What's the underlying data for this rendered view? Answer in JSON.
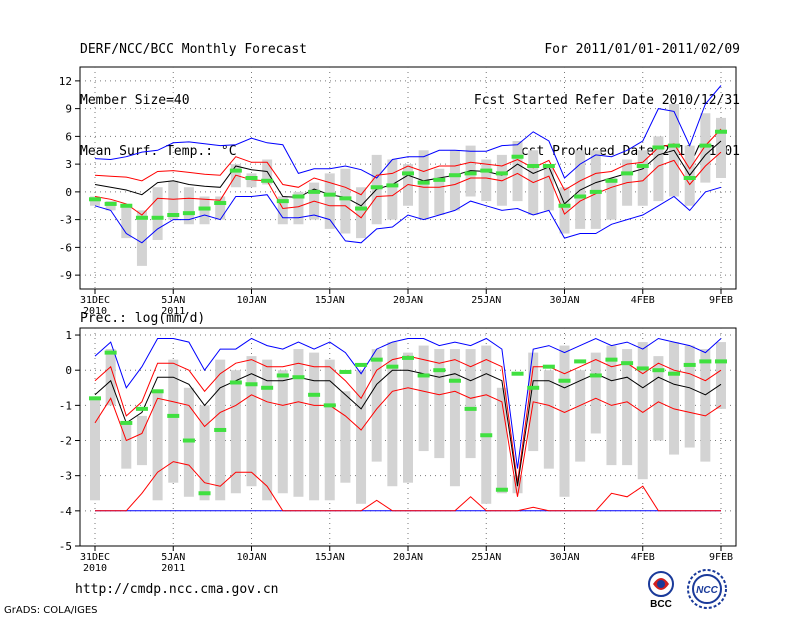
{
  "header": {
    "title": "DERF/NCC/BCC Monthly Forecast",
    "member_size": "Member Size=40",
    "variable_top": "Mean Surf. Temp.: °C",
    "for_range": "For 2011/01/01-2011/02/09",
    "started": "Fcst Started Refer Date 2010/12/31",
    "produced": "Fcst Produced Date 2011/01/01"
  },
  "footer": {
    "url": "http://cmdp.ncc.cma.gov.cn",
    "grads": "GrADS: COLA/IGES",
    "logo_bcc": "BCC",
    "logo_ncc": "NCC"
  },
  "colors": {
    "max": "#0000ff",
    "spread": "#ff0000",
    "mean": "#000000",
    "box": "#d3d3d3",
    "median": "#40e040"
  },
  "chart_data": [
    {
      "type": "box",
      "title": "Mean Surf. Temp.: °C",
      "days": 41,
      "x_ticks": [
        {
          "day": 0,
          "label": "31DEC",
          "sub": "2010"
        },
        {
          "day": 5,
          "label": "5JAN",
          "sub": "2011"
        },
        {
          "day": 10,
          "label": "10JAN",
          "sub": ""
        },
        {
          "day": 15,
          "label": "15JAN",
          "sub": ""
        },
        {
          "day": 20,
          "label": "20JAN",
          "sub": ""
        },
        {
          "day": 25,
          "label": "25JAN",
          "sub": ""
        },
        {
          "day": 30,
          "label": "30JAN",
          "sub": ""
        },
        {
          "day": 35,
          "label": "4FEB",
          "sub": ""
        },
        {
          "day": 40,
          "label": "9FEB",
          "sub": ""
        }
      ],
      "ylim": [
        -10.5,
        13.5
      ],
      "yticks": [
        -9,
        -6,
        -3,
        0,
        3,
        6,
        9,
        12
      ],
      "grid": true,
      "max": [
        3.6,
        3.5,
        3.8,
        4.3,
        4.5,
        5.3,
        5.4,
        5.2,
        5.0,
        5.1,
        5.8,
        5.3,
        5.1,
        2.0,
        2.5,
        2.5,
        2.8,
        2.4,
        1.5,
        3.5,
        3.8,
        3.8,
        4.5,
        4.5,
        4.4,
        4.4,
        5.0,
        5.1,
        6.5,
        5.5,
        1.5,
        3.0,
        4.0,
        3.8,
        4.5,
        5.5,
        9.0,
        8.7,
        5.0,
        9.5,
        11.5
      ],
      "upper": [
        1.8,
        1.7,
        1.6,
        1.2,
        2.2,
        2.3,
        2.1,
        1.9,
        1.8,
        3.8,
        3.2,
        3.2,
        0.8,
        0.5,
        1.5,
        1.0,
        0.5,
        -0.3,
        1.8,
        2.0,
        2.8,
        2.2,
        2.8,
        2.8,
        3.2,
        3.0,
        2.8,
        3.5,
        2.6,
        3.4,
        0.2,
        1.2,
        2.0,
        2.2,
        3.0,
        3.2,
        4.8,
        5.2,
        2.5,
        5.0,
        6.8
      ],
      "mean": [
        0.8,
        0.5,
        0.2,
        -0.3,
        1.0,
        1.2,
        0.8,
        0.6,
        0.5,
        2.8,
        2.4,
        2.2,
        -0.5,
        -0.6,
        0.3,
        -0.3,
        -0.6,
        -1.5,
        0.3,
        0.8,
        1.8,
        1.2,
        1.5,
        1.8,
        2.3,
        2.2,
        1.8,
        3.0,
        2.0,
        2.7,
        -1.3,
        0.2,
        1.0,
        1.5,
        2.0,
        2.5,
        4.0,
        4.5,
        1.8,
        4.0,
        5.5
      ],
      "lower": [
        -0.5,
        -0.8,
        -1.3,
        -2.5,
        -0.7,
        -0.8,
        -0.7,
        -0.8,
        -0.9,
        1.8,
        1.3,
        1.2,
        -1.8,
        -1.6,
        -1.0,
        -1.5,
        -1.5,
        -2.8,
        -0.5,
        -0.4,
        0.8,
        0.5,
        0.5,
        0.8,
        1.5,
        1.5,
        1.2,
        2.0,
        1.0,
        1.7,
        -2.4,
        -1.0,
        -0.2,
        0.5,
        1.0,
        1.2,
        2.8,
        3.4,
        0.8,
        2.8,
        4.3
      ],
      "min": [
        -1.5,
        -2.0,
        -4.5,
        -5.5,
        -4.0,
        -3.0,
        -3.0,
        -2.5,
        -3.0,
        -0.5,
        -0.5,
        -0.3,
        -2.8,
        -2.8,
        -2.5,
        -3.0,
        -5.3,
        -5.5,
        -4.0,
        -3.8,
        -2.5,
        -3.0,
        -2.5,
        -2.0,
        -1.0,
        -1.5,
        -2.0,
        -1.8,
        -2.5,
        -2.0,
        -5.0,
        -4.5,
        -4.5,
        -3.5,
        -3.0,
        -2.5,
        -1.5,
        -0.5,
        -2.0,
        0.0,
        0.5
      ],
      "box_top": [
        -0.5,
        -1.0,
        -1.3,
        -2.0,
        0.5,
        1.2,
        0.5,
        -0.5,
        -0.5,
        3.0,
        2.0,
        3.5,
        -0.5,
        0.0,
        1.0,
        2.0,
        2.5,
        0.5,
        4.0,
        3.5,
        3.0,
        4.5,
        2.5,
        4.5,
        5.0,
        3.5,
        4.0,
        5.5,
        4.5,
        3.0,
        0.5,
        4.5,
        4.5,
        1.5,
        3.5,
        4.5,
        6.0,
        9.5,
        5.0,
        8.5,
        8.0
      ],
      "box_bot": [
        -1.5,
        -2.0,
        -5.0,
        -8.0,
        -5.2,
        -3.0,
        -3.5,
        -3.5,
        -3.0,
        0.5,
        0.5,
        0.8,
        -3.5,
        -3.5,
        -3.0,
        -4.0,
        -4.5,
        -5.0,
        -3.5,
        -3.0,
        -1.5,
        -3.0,
        -2.5,
        -2.0,
        -0.5,
        -1.0,
        -1.5,
        -1.0,
        -2.5,
        -2.0,
        -4.5,
        -4.0,
        -4.0,
        -3.0,
        -1.5,
        -1.5,
        -1.0,
        -0.5,
        -1.5,
        1.0,
        1.5
      ],
      "median": [
        -0.8,
        -1.3,
        -1.5,
        -2.8,
        -2.8,
        -2.5,
        -2.3,
        -1.8,
        -1.2,
        2.3,
        1.5,
        1.2,
        -1.0,
        -0.5,
        0.0,
        -0.3,
        -0.7,
        -1.8,
        0.5,
        0.7,
        2.0,
        1.0,
        1.3,
        1.8,
        2.0,
        2.3,
        2.0,
        3.8,
        2.8,
        2.8,
        -1.5,
        -0.5,
        0.0,
        1.2,
        2.0,
        2.8,
        4.8,
        5.0,
        1.5,
        5.0,
        6.5
      ]
    },
    {
      "type": "box",
      "title": "Prec.: log(mm/d)",
      "days": 41,
      "x_ticks": [
        {
          "day": 0,
          "label": "31DEC",
          "sub": "2010"
        },
        {
          "day": 5,
          "label": "5JAN",
          "sub": "2011"
        },
        {
          "day": 10,
          "label": "10JAN",
          "sub": ""
        },
        {
          "day": 15,
          "label": "15JAN",
          "sub": ""
        },
        {
          "day": 20,
          "label": "20JAN",
          "sub": ""
        },
        {
          "day": 25,
          "label": "25JAN",
          "sub": ""
        },
        {
          "day": 30,
          "label": "30JAN",
          "sub": ""
        },
        {
          "day": 35,
          "label": "4FEB",
          "sub": ""
        },
        {
          "day": 40,
          "label": "9FEB",
          "sub": ""
        }
      ],
      "ylim": [
        -5,
        1.2
      ],
      "yticks": [
        -5,
        -4,
        -3,
        -2,
        -1,
        0,
        1
      ],
      "grid": true,
      "max": [
        0.4,
        0.8,
        -0.5,
        0.1,
        0.9,
        0.9,
        0.8,
        0.0,
        0.6,
        0.6,
        0.9,
        0.7,
        0.6,
        0.8,
        0.6,
        0.8,
        0.5,
        -0.1,
        0.6,
        0.8,
        0.9,
        0.9,
        0.7,
        0.8,
        0.7,
        0.9,
        0.6,
        -2.8,
        0.6,
        0.7,
        0.5,
        0.7,
        0.9,
        0.7,
        0.8,
        0.6,
        0.9,
        0.8,
        0.7,
        0.5,
        0.9
      ],
      "upper": [
        -0.3,
        0.1,
        -1.3,
        -0.9,
        0.2,
        0.2,
        0.0,
        -0.6,
        -0.1,
        0.2,
        0.3,
        0.1,
        0.1,
        0.2,
        0.1,
        0.1,
        -0.3,
        -0.8,
        0.0,
        0.3,
        0.4,
        0.3,
        0.2,
        0.3,
        0.1,
        0.3,
        0.1,
        -3.2,
        0.1,
        0.1,
        -0.1,
        0.1,
        0.3,
        0.1,
        0.2,
        -0.1,
        0.2,
        0.0,
        -0.1,
        -0.3,
        0.0
      ],
      "mean": [
        -0.7,
        -0.3,
        -1.5,
        -1.2,
        -0.2,
        -0.2,
        -0.4,
        -1.0,
        -0.5,
        -0.3,
        -0.1,
        -0.3,
        -0.3,
        -0.2,
        -0.3,
        -0.3,
        -0.7,
        -1.1,
        -0.4,
        0.0,
        0.0,
        -0.1,
        -0.2,
        -0.1,
        -0.3,
        -0.1,
        -0.3,
        -3.3,
        -0.3,
        -0.3,
        -0.5,
        -0.3,
        -0.1,
        -0.3,
        -0.2,
        -0.5,
        -0.2,
        -0.4,
        -0.5,
        -0.7,
        -0.4
      ],
      "lower": [
        -1.5,
        -0.8,
        -2.0,
        -1.8,
        -0.8,
        -0.9,
        -1.0,
        -1.6,
        -1.2,
        -1.0,
        -0.7,
        -0.9,
        -1.0,
        -0.9,
        -1.0,
        -1.0,
        -1.3,
        -1.7,
        -1.1,
        -0.6,
        -0.5,
        -0.6,
        -0.7,
        -0.6,
        -0.8,
        -0.7,
        -0.9,
        -3.6,
        -0.9,
        -1.0,
        -1.2,
        -1.0,
        -0.8,
        -1.0,
        -0.9,
        -1.2,
        -0.9,
        -1.1,
        -1.2,
        -1.3,
        -1.0
      ],
      "min": [
        -4.0,
        -4.0,
        -4.0,
        -4.0,
        -4.0,
        -4.0,
        -4.0,
        -4.0,
        -4.0,
        -4.0,
        -4.0,
        -4.0,
        -4.0,
        -4.0,
        -4.0,
        -4.0,
        -4.0,
        -4.0,
        -4.0,
        -4.0,
        -4.0,
        -4.0,
        -4.0,
        -4.0,
        -4.0,
        -4.0,
        -4.0,
        -4.0,
        -4.0,
        -4.0,
        -4.0,
        -4.0,
        -4.0,
        -4.0,
        -4.0,
        -4.0,
        -4.0,
        -4.0,
        -4.0,
        -4.0,
        -4.0
      ],
      "p10": [
        -4.0,
        -4.0,
        -4.0,
        -3.5,
        -2.9,
        -2.6,
        -2.7,
        -3.2,
        -3.3,
        -2.9,
        -2.9,
        -3.3,
        -4.0,
        -4.0,
        -4.0,
        -4.0,
        -4.0,
        -4.0,
        -3.7,
        -4.0,
        -4.0,
        -4.0,
        -4.0,
        -4.0,
        -3.6,
        -4.0,
        -4.0,
        -4.0,
        -3.9,
        -4.0,
        -4.0,
        -4.0,
        -4.0,
        -3.5,
        -3.6,
        -3.3,
        -4.0,
        -4.0,
        -4.0,
        -4.0,
        -4.0
      ],
      "box_top": [
        -0.8,
        0.6,
        -1.5,
        -1.3,
        -0.6,
        0.3,
        -0.5,
        -1.0,
        0.3,
        0.0,
        0.4,
        0.3,
        0.0,
        0.6,
        0.5,
        0.3,
        -0.6,
        0.0,
        0.6,
        0.8,
        0.5,
        0.7,
        0.6,
        0.6,
        0.6,
        0.7,
        -0.5,
        -3.0,
        0.5,
        0.0,
        0.7,
        0.0,
        0.5,
        0.7,
        0.6,
        0.8,
        0.4,
        0.8,
        0.7,
        0.6,
        0.8
      ],
      "box_bot": [
        -3.7,
        -1.0,
        -2.8,
        -2.7,
        -3.7,
        -3.2,
        -3.6,
        -3.7,
        -3.7,
        -3.5,
        -3.3,
        -3.7,
        -3.5,
        -3.6,
        -3.7,
        -3.7,
        -3.2,
        -3.8,
        -2.6,
        -3.3,
        -3.2,
        -2.3,
        -2.5,
        -3.3,
        -2.5,
        -3.8,
        -3.5,
        -3.5,
        -2.3,
        -2.8,
        -3.6,
        -2.6,
        -1.8,
        -2.7,
        -2.7,
        -3.1,
        -2.0,
        -2.4,
        -2.2,
        -2.6,
        -1.1
      ],
      "median": [
        -0.8,
        0.5,
        -1.5,
        -1.1,
        -0.6,
        -1.3,
        -2.0,
        -3.5,
        -1.7,
        -0.35,
        -0.4,
        -0.5,
        -0.15,
        -0.2,
        -0.7,
        -1.0,
        -0.05,
        0.15,
        0.3,
        0.1,
        0.35,
        -0.15,
        0.0,
        -0.3,
        -1.1,
        -1.85,
        -3.4,
        -0.1,
        -0.5,
        0.1,
        -0.3,
        0.25,
        -0.15,
        0.3,
        0.2,
        0.05,
        0.0,
        -0.1,
        0.15,
        0.25,
        0.25
      ]
    }
  ]
}
